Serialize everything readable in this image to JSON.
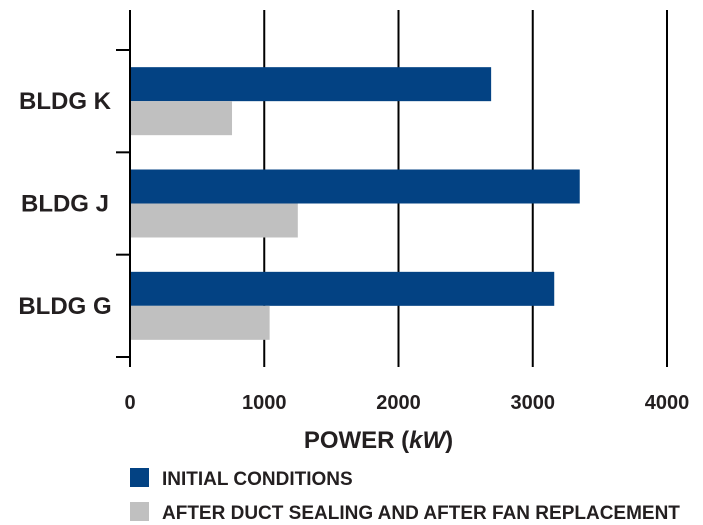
{
  "chart_data": {
    "type": "bar",
    "orientation": "horizontal",
    "categories": [
      "BLDG K",
      "BLDG J",
      "BLDG G"
    ],
    "series": [
      {
        "name": "INITIAL CONDITIONS",
        "color": "#034283",
        "values": [
          2690,
          3350,
          3160
        ]
      },
      {
        "name": "AFTER DUCT SEALING AND AFTER FAN REPLACEMENT",
        "color": "#c0c0c0",
        "values": [
          760,
          1250,
          1040
        ]
      }
    ],
    "xlabel": "POWER (kW)",
    "xlabel_parts": {
      "prefix": "POWER (",
      "unit": "kW",
      "suffix": ")"
    },
    "ylabel": "",
    "xlim": [
      0,
      4000
    ],
    "xticks": [
      0,
      1000,
      2000,
      3000,
      4000
    ],
    "grid": true,
    "legend": "bottom"
  }
}
